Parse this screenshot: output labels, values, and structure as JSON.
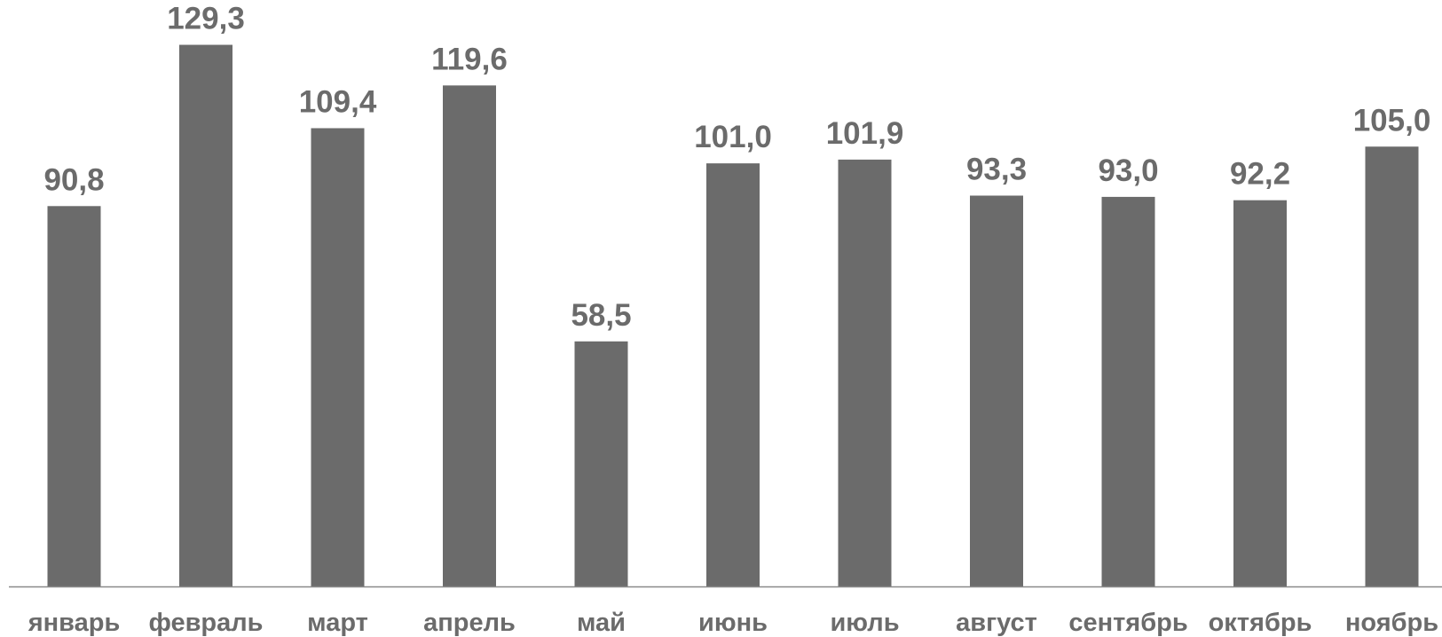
{
  "chart_data": {
    "type": "bar",
    "categories": [
      "январь",
      "февраль",
      "март",
      "апрель",
      "май",
      "июнь",
      "июль",
      "август",
      "сентябрь",
      "октябрь",
      "ноябрь"
    ],
    "values": [
      90.8,
      129.3,
      109.4,
      119.6,
      58.5,
      101.0,
      101.9,
      93.3,
      93.0,
      92.2,
      105.0
    ],
    "value_labels": [
      "90,8",
      "129,3",
      "109,4",
      "119,6",
      "58,5",
      "101,0",
      "101,9",
      "93,3",
      "93,0",
      "92,2",
      "105,0"
    ],
    "title": "",
    "xlabel": "",
    "ylabel": "",
    "ylim": [
      0,
      140
    ],
    "grid": false,
    "legend": "none"
  },
  "colors": {
    "bar": "#6b6b6b",
    "label": "#6b6b6b",
    "axis": "#8a8a8a",
    "background": "#ffffff"
  }
}
